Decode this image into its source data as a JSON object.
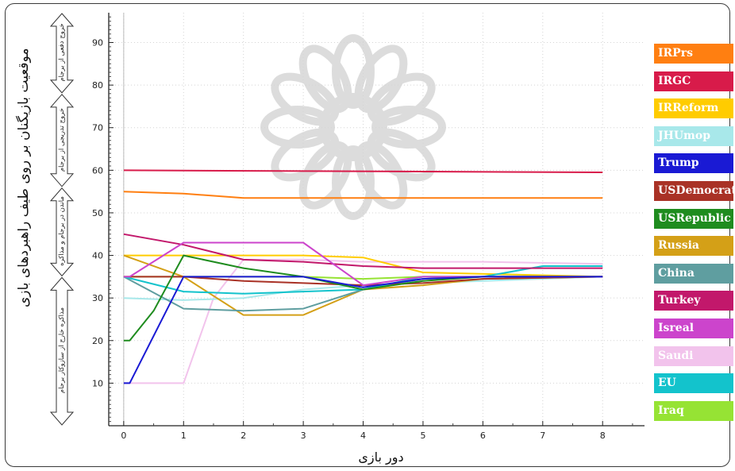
{
  "chart_data": {
    "type": "line",
    "xlabel": "دور بازی",
    "ylabel": "موقعیت بازیگنان بر روی طیف راهبردهای بازی",
    "xlim": [
      -0.25,
      8.7
    ],
    "ylim": [
      0,
      97
    ],
    "x_ticks": [
      0,
      1,
      2,
      3,
      4,
      5,
      6,
      7,
      8
    ],
    "y_ticks": [
      10,
      20,
      30,
      40,
      50,
      60,
      70,
      80,
      90
    ],
    "grid": true,
    "legend_position": "right",
    "strategy_bands": [
      {
        "label": "خروج دفعی از برجام",
        "range": [
          78,
          97
        ]
      },
      {
        "label": "خروج تدریجی از برجام",
        "range": [
          56,
          78
        ]
      },
      {
        "label": "ماندن در برجام و مذاکره",
        "range": [
          35,
          56
        ]
      },
      {
        "label": "مذاکره خارج از سازوکار برجام",
        "range": [
          0,
          35
        ]
      }
    ],
    "series": [
      {
        "name": "IRPrs",
        "color": "#ff7f11",
        "points": [
          [
            0,
            55
          ],
          [
            1,
            54.5
          ],
          [
            2,
            53.5
          ],
          [
            4,
            53.5
          ],
          [
            8,
            53.5
          ]
        ]
      },
      {
        "name": "IRGC",
        "color": "#d81b4a",
        "points": [
          [
            0,
            60
          ],
          [
            8,
            59.5
          ]
        ]
      },
      {
        "name": "IRReform",
        "color": "#ffcc00",
        "points": [
          [
            0,
            40
          ],
          [
            1,
            40
          ],
          [
            2,
            40
          ],
          [
            3,
            40
          ],
          [
            4,
            39.5
          ],
          [
            5,
            36
          ],
          [
            8,
            35
          ]
        ]
      },
      {
        "name": "JHUmop",
        "color": "#a8e8ea",
        "points": [
          [
            0,
            30
          ],
          [
            1,
            29.5
          ],
          [
            2,
            30
          ],
          [
            3,
            32
          ],
          [
            4,
            33
          ],
          [
            8,
            35
          ]
        ]
      },
      {
        "name": "Trump",
        "color": "#1a1ad4",
        "points": [
          [
            0,
            10
          ],
          [
            0.1,
            10
          ],
          [
            1,
            35
          ],
          [
            2,
            35
          ],
          [
            3,
            35
          ],
          [
            4,
            32.5
          ],
          [
            5,
            34.5
          ],
          [
            6,
            35
          ],
          [
            8,
            35
          ]
        ]
      },
      {
        "name": "USDemocrat",
        "color": "#a93226",
        "points": [
          [
            0,
            35
          ],
          [
            1,
            35
          ],
          [
            2,
            34
          ],
          [
            3,
            33.5
          ],
          [
            4,
            33
          ],
          [
            5,
            33.5
          ],
          [
            6,
            34.5
          ],
          [
            8,
            35
          ]
        ]
      },
      {
        "name": "USRepublic",
        "color": "#1f8c1f",
        "points": [
          [
            0,
            20
          ],
          [
            0.1,
            20
          ],
          [
            0.5,
            27
          ],
          [
            1,
            40
          ],
          [
            2,
            37
          ],
          [
            3,
            35
          ],
          [
            4,
            32
          ],
          [
            5,
            34
          ],
          [
            6,
            35
          ],
          [
            8,
            35
          ]
        ]
      },
      {
        "name": "Russia",
        "color": "#d4a017",
        "points": [
          [
            0,
            40
          ],
          [
            1,
            35
          ],
          [
            2,
            26
          ],
          [
            3,
            26
          ],
          [
            4,
            32
          ],
          [
            5,
            33
          ],
          [
            6,
            34.5
          ],
          [
            8,
            35
          ]
        ]
      },
      {
        "name": "China",
        "color": "#5f9ea0",
        "points": [
          [
            0,
            35
          ],
          [
            1,
            27.5
          ],
          [
            2,
            27
          ],
          [
            3,
            27.5
          ],
          [
            4,
            32
          ],
          [
            5,
            34.5
          ],
          [
            6,
            35
          ],
          [
            8,
            35
          ]
        ]
      },
      {
        "name": "Turkey",
        "color": "#c2186b",
        "points": [
          [
            0,
            45
          ],
          [
            1,
            42.5
          ],
          [
            2,
            39
          ],
          [
            3,
            38.5
          ],
          [
            4,
            37.5
          ],
          [
            5,
            37
          ],
          [
            6,
            37
          ],
          [
            8,
            37
          ]
        ]
      },
      {
        "name": "Isreal",
        "color": "#cc44cc",
        "points": [
          [
            0,
            35
          ],
          [
            0.1,
            35
          ],
          [
            1,
            43
          ],
          [
            2,
            43
          ],
          [
            3,
            43
          ],
          [
            4,
            33
          ],
          [
            5,
            35
          ],
          [
            6,
            35
          ],
          [
            8,
            35
          ]
        ]
      },
      {
        "name": "Saudi",
        "color": "#f2c3ec",
        "points": [
          [
            0,
            10
          ],
          [
            1,
            10
          ],
          [
            1.5,
            30
          ],
          [
            2,
            39
          ],
          [
            3,
            39
          ],
          [
            4,
            38.5
          ],
          [
            5,
            38.5
          ],
          [
            6,
            38.5
          ],
          [
            8,
            38
          ]
        ]
      },
      {
        "name": "EU",
        "color": "#13c3cc",
        "points": [
          [
            0,
            35
          ],
          [
            1,
            31.5
          ],
          [
            2,
            31
          ],
          [
            3,
            31.5
          ],
          [
            4,
            32
          ],
          [
            5,
            35
          ],
          [
            6,
            35
          ],
          [
            7,
            37.5
          ],
          [
            8,
            37.5
          ]
        ]
      },
      {
        "name": "Iraq",
        "color": "#96e334",
        "points": [
          [
            0,
            35
          ],
          [
            1,
            35
          ],
          [
            2,
            35
          ],
          [
            3,
            35
          ],
          [
            4,
            34.5
          ],
          [
            5,
            35
          ],
          [
            8,
            35
          ]
        ]
      }
    ]
  }
}
